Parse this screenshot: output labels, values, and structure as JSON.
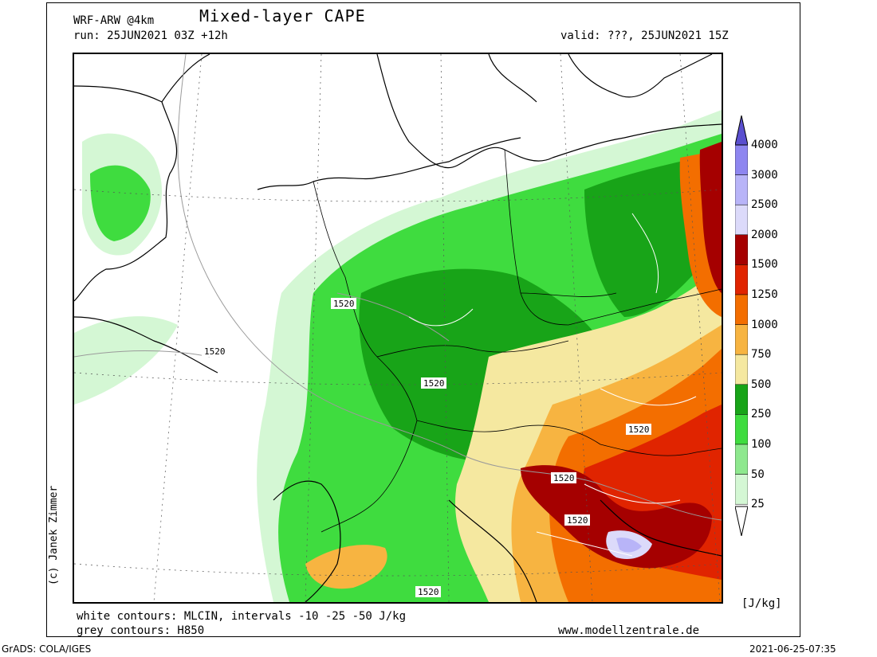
{
  "header": {
    "model": "WRF-ARW @4km",
    "title": "Mixed-layer CAPE",
    "run": "run: 25JUN2021 03Z +12h",
    "valid": "valid: ???, 25JUN2021 15Z"
  },
  "map": {
    "contour_labels": [
      "1520",
      "1520",
      "1520",
      "1520",
      "1520",
      "1520",
      "1520"
    ]
  },
  "legend": {
    "levels": [
      "4000",
      "3000",
      "2500",
      "2000",
      "1500",
      "1250",
      "1000",
      "750",
      "500",
      "250",
      "100",
      "50",
      "25"
    ],
    "colors": [
      "#5a4fcf",
      "#8e86f0",
      "#b8b4f8",
      "#dcdafa",
      "#a50000",
      "#e02400",
      "#f36e00",
      "#f7b441",
      "#f5e8a0",
      "#18a418",
      "#3fdc3f",
      "#8ee88e",
      "#d4f7d4"
    ],
    "unit": "[J/kg]"
  },
  "footer": {
    "note_white": "white contours: MLCIN, intervals -10 -25 -50 J/kg",
    "note_grey": "grey contours: H850",
    "website": "www.modellzentrale.de",
    "grads": "GrADS: COLA/IGES",
    "timestamp": "2021-06-25-07:35"
  },
  "copyright": "(c) Janek Zimmer"
}
